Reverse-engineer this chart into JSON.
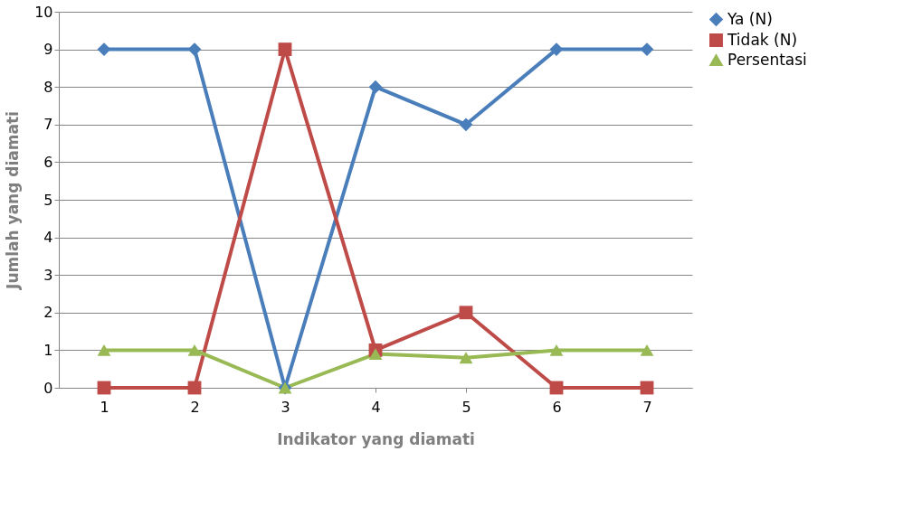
{
  "chart_data": {
    "type": "line",
    "xlabel": "Indikator yang diamati",
    "ylabel": "Jumlah yang diamati",
    "categories": [
      "1",
      "2",
      "3",
      "4",
      "5",
      "6",
      "7"
    ],
    "series": [
      {
        "name": "Ya (N)",
        "color": "#4a7ebb",
        "marker": "diamond",
        "values": [
          9,
          9,
          0,
          8,
          7,
          9,
          9
        ]
      },
      {
        "name": "Tidak (N)",
        "color": "#be4b48",
        "marker": "square",
        "values": [
          0,
          0,
          9,
          1,
          2,
          0,
          0
        ]
      },
      {
        "name": "Persentasi",
        "color": "#98b954",
        "marker": "triangle",
        "values": [
          1,
          1,
          0,
          0.9,
          0.8,
          1,
          1
        ]
      }
    ],
    "ylim": [
      0,
      10
    ],
    "yticks": [
      0,
      1,
      2,
      3,
      4,
      5,
      6,
      7,
      8,
      9,
      10
    ],
    "grid": "y",
    "legend": "right"
  }
}
